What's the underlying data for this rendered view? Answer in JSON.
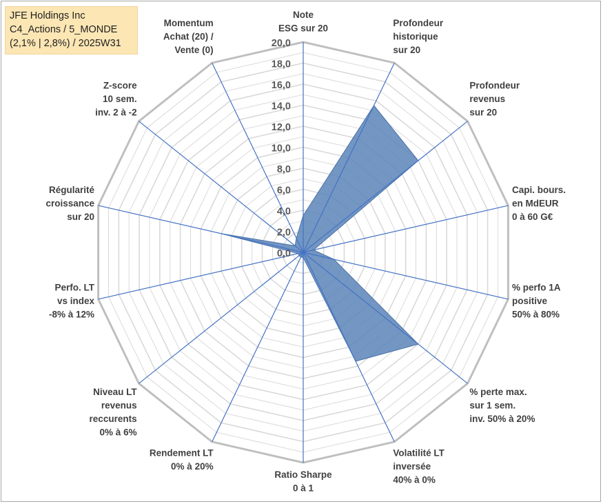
{
  "chart_box": {
    "line1": "JFE Holdings Inc",
    "line2": "C4_Actions / 5_MONDE",
    "line3": "(2,1% | 2,8%) / 2025W31"
  },
  "chart_data": {
    "type": "radar",
    "rmin": 0,
    "rmax": 20,
    "ticks": [
      "0,0",
      "2,0",
      "4,0",
      "6,0",
      "8,0",
      "10,0",
      "12,0",
      "14,0",
      "16,0",
      "18,0",
      "20,0"
    ],
    "axes": [
      {
        "label": [
          "Note",
          "ESG sur 20"
        ],
        "value": 3.5
      },
      {
        "label": [
          "Profondeur",
          "historique",
          "sur 20"
        ],
        "value": 15.5
      },
      {
        "label": [
          "Profondeur",
          "revenus",
          "sur 20"
        ],
        "value": 14.0
      },
      {
        "label": [
          "Capi. bours.",
          "en MdEUR",
          "0 à 60 G€"
        ],
        "value": 1.0
      },
      {
        "label": [
          "% perfo 1A",
          "positive",
          "50% à 80%"
        ],
        "value": 3.0
      },
      {
        "label": [
          "% perte max.",
          "sur 1 sem.",
          "inv. 50% à 20%"
        ],
        "value": 14.0
      },
      {
        "label": [
          "Volatilité LT",
          "inversée",
          "40% à 0%"
        ],
        "value": 11.5
      },
      {
        "label": [
          "Ratio Sharpe",
          "0 à 1"
        ],
        "value": 0.5
      },
      {
        "label": [
          "Rendement LT",
          "0% à 20%"
        ],
        "value": 0.5
      },
      {
        "label": [
          "Niveau LT",
          "revenus",
          "reccurents",
          "0% à 6%"
        ],
        "value": 0.5
      },
      {
        "label": [
          "Perfo. LT",
          "vs index",
          "-8% à 12%"
        ],
        "value": 0.5
      },
      {
        "label": [
          "Régularité",
          "croissance",
          "sur 20"
        ],
        "value": 8.0
      },
      {
        "label": [
          "Z-score",
          "10 sem.",
          "inv. 2 à -2"
        ],
        "value": 1.0
      },
      {
        "label": [
          "Momentum",
          "Achat (20) /",
          "Vente (0)"
        ],
        "value": 1.5
      }
    ],
    "grid": true,
    "colors": {
      "fill": "#5b84b8",
      "fill_opacity": "0.85",
      "spoke": "#4472c4",
      "grid": "#d9d9d9",
      "outer": "#bfbfbf"
    }
  }
}
